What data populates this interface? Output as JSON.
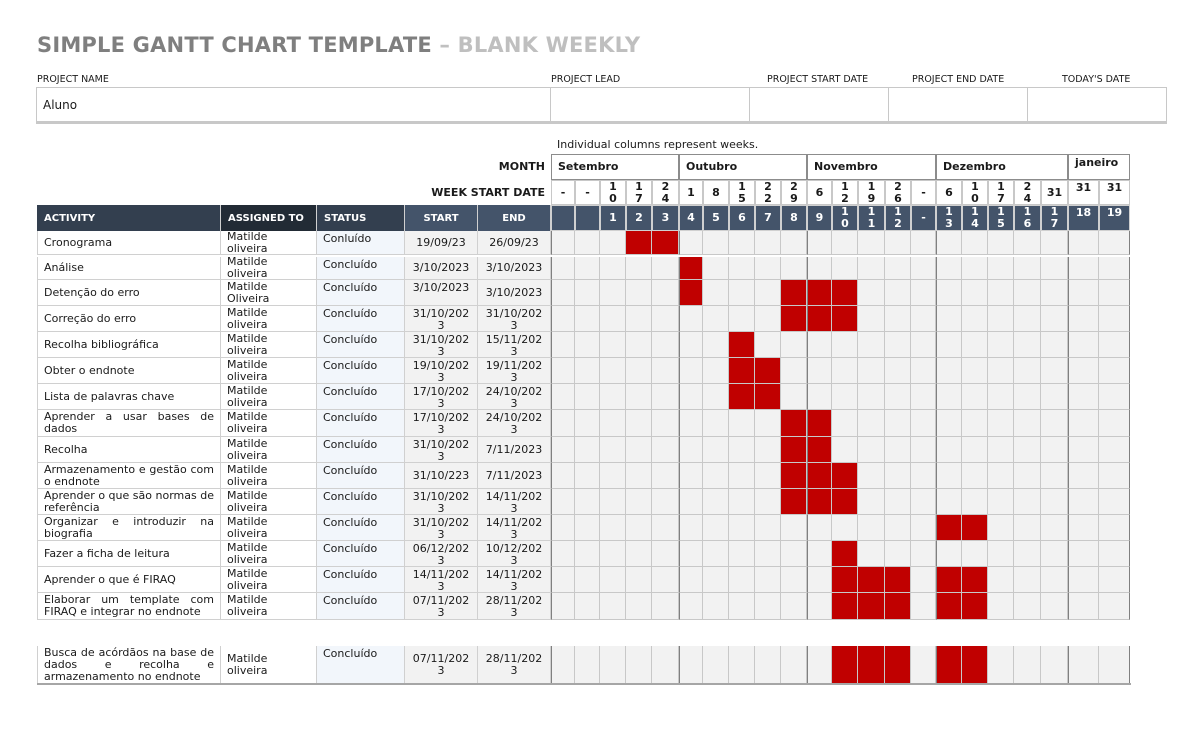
{
  "header": {
    "title_main": "SIMPLE GANTT CHART TEMPLATE",
    "title_sep": " – ",
    "title_sub": "BLANK WEEKLY"
  },
  "project": {
    "name_label": "PROJECT NAME",
    "name_value": "Aluno",
    "lead_label": "PROJECT LEAD",
    "lead_value": "",
    "start_label": "PROJECT START DATE",
    "start_value": "",
    "end_label": "PROJECT END DATE",
    "end_value": "",
    "today_label": "TODAY'S DATE",
    "today_value": ""
  },
  "gantt_header": {
    "note": "Individual columns represent weeks.",
    "month_label": "MONTH",
    "week_start_label": "WEEK START DATE",
    "months": [
      {
        "label": "Setembro",
        "span": 5
      },
      {
        "label": "Outubro",
        "span": 5
      },
      {
        "label": "Novembro",
        "span": 5
      },
      {
        "label": "Dezembro",
        "span": 5
      },
      {
        "label": "janeiro",
        "span": 2
      }
    ],
    "week_start_dates": [
      "-",
      "-",
      "10",
      "17",
      "24",
      "1",
      "8",
      "15",
      "22",
      "29",
      "6",
      "12",
      "19",
      "26",
      "-",
      "6",
      "10",
      "17",
      "24",
      "31",
      "31",
      "31"
    ],
    "week_numbers": [
      "",
      "",
      "1",
      "2",
      "3",
      "4",
      "5",
      "6",
      "7",
      "8",
      "9",
      "10",
      "11",
      "12",
      "-",
      "13",
      "14",
      "15",
      "16",
      "17",
      "18",
      "19"
    ]
  },
  "table": {
    "columns": [
      "ACTIVITY",
      "ASSIGNED TO",
      "STATUS",
      "START",
      "END"
    ],
    "rows": [
      {
        "activity": "Cronograma",
        "assigned": "Matilde oliveira",
        "status": "Conluído",
        "start": "19/09/23",
        "end": "26/09/23",
        "weeks": [
          3,
          4
        ]
      },
      {
        "activity": "Análise",
        "assigned": "Matilde oliveira",
        "status": "Concluído",
        "start": "3/10/2023",
        "end": "3/10/2023",
        "weeks": [
          5
        ]
      },
      {
        "activity": "Detenção do erro",
        "assigned": "Matilde Oliveira",
        "status": "Concluído",
        "start": "3/10/2023",
        "end": "3/10/2023",
        "weeks": [
          5,
          9,
          10,
          11
        ]
      },
      {
        "activity": "Correção do erro",
        "assigned": "Matilde oliveira",
        "status": "Concluído",
        "start": "31/10/2023",
        "end": "31/10/2023",
        "weeks": [
          9,
          10,
          11
        ]
      },
      {
        "activity": "Recolha bibliográfica",
        "assigned": "Matilde oliveira",
        "status": "Concluído",
        "start": "31/10/2023",
        "end": "15/11/2023",
        "weeks": [
          7
        ]
      },
      {
        "activity": "Obter o endnote",
        "assigned": "Matilde oliveira",
        "status": "Concluído",
        "start": "19/10/2023",
        "end": "19/11/2023",
        "weeks": [
          7,
          8
        ]
      },
      {
        "activity": "Lista de palavras chave",
        "assigned": "Matilde oliveira",
        "status": "Concluído",
        "start": "17/10/2023",
        "end": "24/10/2023",
        "weeks": [
          7,
          8
        ]
      },
      {
        "activity": "Aprender a usar bases de dados",
        "assigned": "Matilde oliveira",
        "status": "Concluído",
        "start": "17/10/2023",
        "end": "24/10/2023",
        "weeks": [
          9,
          10
        ]
      },
      {
        "activity": "Recolha",
        "assigned": "Matilde oliveira",
        "status": "Concluído",
        "start": "31/10/2023",
        "end": "7/11/2023",
        "weeks": [
          9,
          10
        ]
      },
      {
        "activity": "Armazenamento e gestão com o endnote",
        "assigned": "Matilde oliveira",
        "status": "Concluído",
        "start": "31/10/223",
        "end": "7/11/2023",
        "weeks": [
          9,
          10,
          11
        ]
      },
      {
        "activity": "Aprender o que são normas de referência",
        "assigned": "Matilde oliveira",
        "status": "Concluído",
        "start": "31/10/2023",
        "end": "14/11/2023",
        "weeks": [
          9,
          10,
          11
        ]
      },
      {
        "activity": "Organizar e introduzir na biografia",
        "assigned": "Matilde oliveira",
        "status": "Concluído",
        "start": "31/10/2023",
        "end": "14/11/2023",
        "weeks": [
          15,
          16
        ]
      },
      {
        "activity": "Fazer a ficha de leitura",
        "assigned": "Matilde oliveira",
        "status": "Concluído",
        "start": "06/12/2023",
        "end": "10/12/2023",
        "weeks": [
          11
        ]
      },
      {
        "activity": "Aprender o que é FIRAQ",
        "assigned": "Matilde oliveira",
        "status": "Concluído",
        "start": "14/11/2023",
        "end": "14/11/2023",
        "weeks": [
          11,
          12,
          13,
          15,
          16
        ]
      },
      {
        "activity": "Elaborar um template com FIRAQ e integrar no endnote",
        "assigned": "Matilde oliveira",
        "status": "Concluído",
        "start": "07/11/2023",
        "end": "28/11/2023",
        "weeks": [
          11,
          12,
          13,
          15,
          16
        ]
      },
      {
        "activity": "Busca de acórdãos na base de dados e recolha e armazenamento no endnote",
        "assigned": "Matilde oliveira",
        "status": "Concluído",
        "start": "07/11/2023",
        "end": "28/11/2023",
        "weeks": [
          11,
          12,
          13,
          15,
          16
        ]
      }
    ]
  },
  "colors": {
    "bar": "#c00000",
    "header_dark": "#333f4f",
    "header_darker": "#222b35",
    "header_slate": "#44546a",
    "grid_bg": "#f2f2f2"
  }
}
